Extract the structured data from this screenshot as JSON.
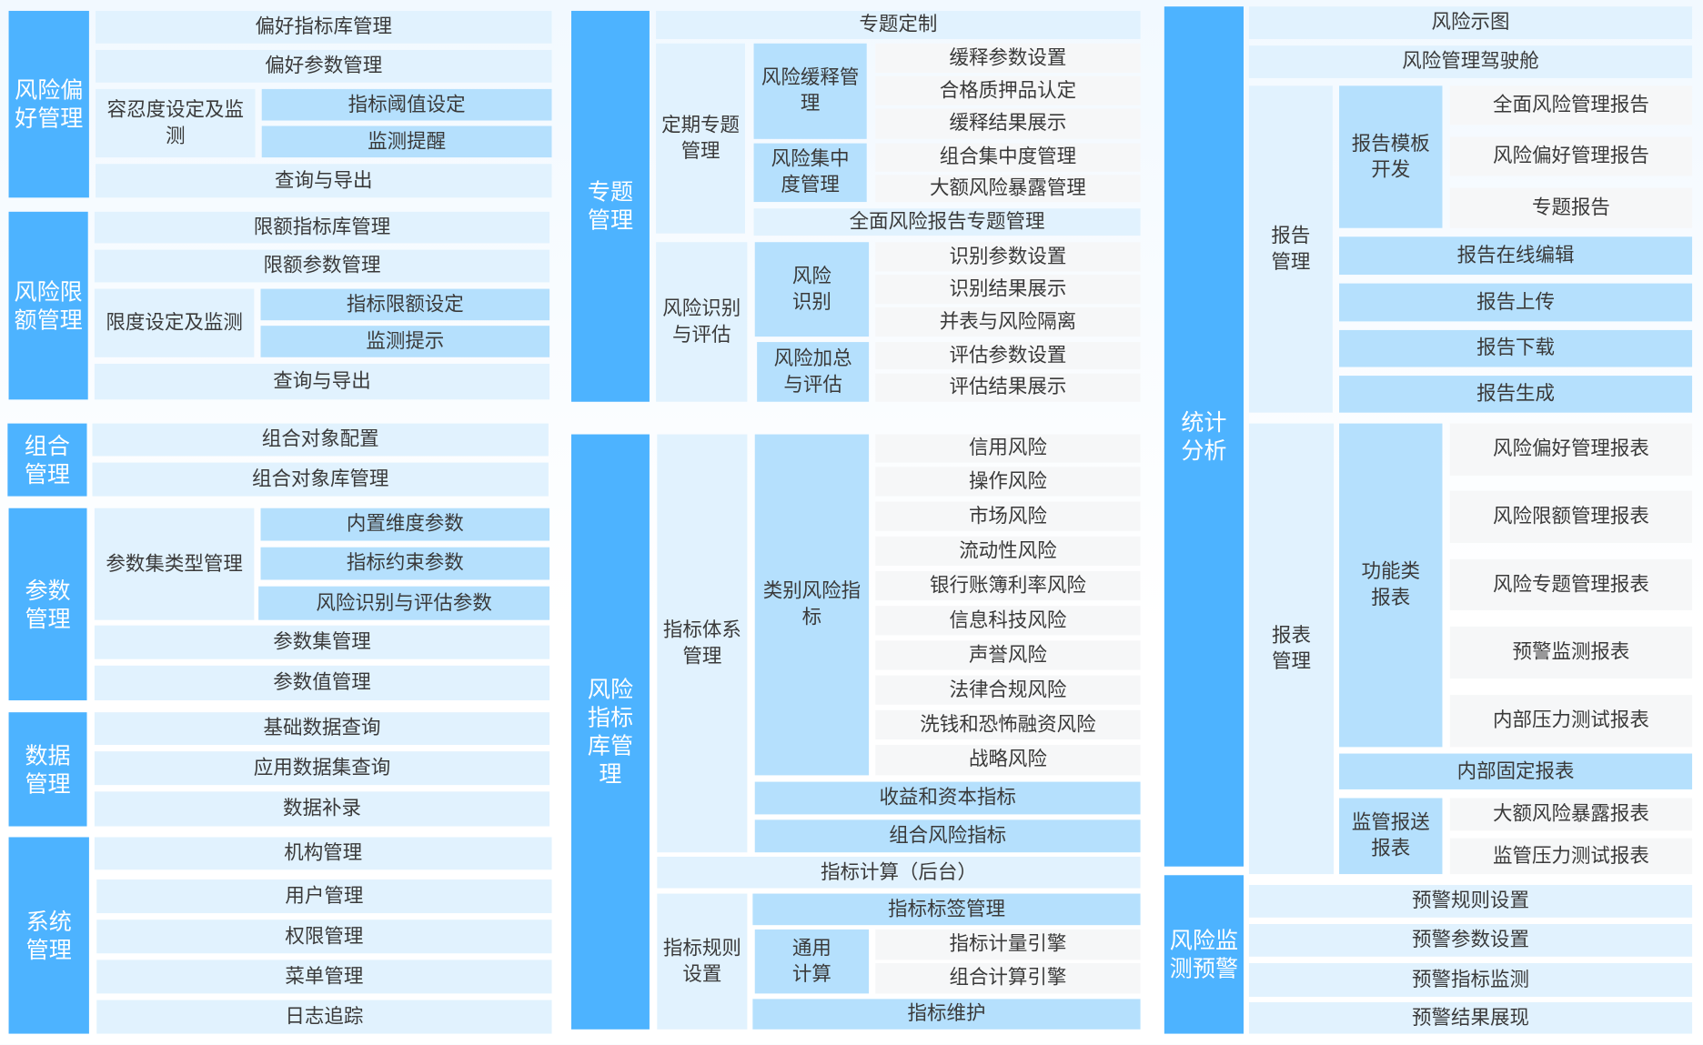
{
  "colors": {
    "header": "#4db3ff",
    "level2": "#e1f2fe",
    "level3": "#b5e0fd",
    "leaf": "#f6f7f8",
    "text": "#3a3a3a"
  },
  "risk_appetite": {
    "title": "风险偏\n好管理",
    "indicator_lib": "偏好指标库管理",
    "params": "偏好参数管理",
    "tolerance": "容忍度设定及监\n测",
    "threshold": "指标阈值设定",
    "reminder": "监测提醒",
    "query": "查询与导出"
  },
  "risk_limit": {
    "title": "风险限\n额管理",
    "indicator_lib": "限额指标库管理",
    "params": "限额参数管理",
    "limit_setting": "限度设定及监测",
    "indicator_limit": "指标限额设定",
    "prompt": "监测提示",
    "query": "查询与导出"
  },
  "portfolio": {
    "title": "组合\n管理",
    "config": "组合对象配置",
    "lib": "组合对象库管理"
  },
  "parameters": {
    "title": "参数\n管理",
    "set_type": "参数集类型管理",
    "builtin": "内置维度参数",
    "constraint": "指标约束参数",
    "risk_eval": "风险识别与评估参数",
    "set_mgmt": "参数集管理",
    "value_mgmt": "参数值管理"
  },
  "data_mgmt": {
    "title": "数据\n管理",
    "basic": "基础数据查询",
    "app": "应用数据集查询",
    "supplement": "数据补录"
  },
  "system": {
    "title": "系统\n管理",
    "org": "机构管理",
    "user": "用户管理",
    "perm": "权限管理",
    "menu": "菜单管理",
    "log": "日志追踪"
  },
  "topic": {
    "title": "专题\n管理",
    "custom": "专题定制",
    "periodic": "定期专题\n管理",
    "mitigation": "风险缓释管\n理",
    "mitigation_items": [
      "缓释参数设置",
      "合格质押品认定",
      "缓释结果展示"
    ],
    "concentration": "风险集中\n度管理",
    "concentration_items": [
      "组合集中度管理",
      "大额风险暴露管理"
    ],
    "comprehensive": "全面风险报告专题管理",
    "identify_eval": "风险识别\n与评估",
    "identify": "风险\n识别",
    "identify_items": [
      "识别参数设置",
      "识别结果展示",
      "并表与风险隔离"
    ],
    "aggregate": "风险加总\n与评估",
    "aggregate_items": [
      "评估参数设置",
      "评估结果展示"
    ]
  },
  "indicator_lib": {
    "title": "风险\n指标\n库管\n理",
    "system": "指标体系\n管理",
    "category": "类别风险指\n标",
    "category_items": [
      "信用风险",
      "操作风险",
      "市场风险",
      "流动性风险",
      "银行账簿利率风险",
      "信息科技风险",
      "声誉风险",
      "法律合规风险",
      "洗钱和恐怖融资风险",
      "战略风险"
    ],
    "income_capital": "收益和资本指标",
    "portfolio_ind": "组合风险指标",
    "calc": "指标计算（后台）",
    "rules": "指标规则\n设置",
    "tag": "指标标签管理",
    "general": "通用\n计算",
    "general_items": [
      "指标计量引擎",
      "组合计算引擎"
    ],
    "maintain": "指标维护"
  },
  "statistics": {
    "title": "统计\n分析",
    "risk_map": "风险示图",
    "cockpit": "风险管理驾驶舱",
    "report_mgmt": "报告\n管理",
    "template": "报告模板\n开发",
    "template_items": [
      "全面风险管理报告",
      "风险偏好管理报告",
      "专题报告"
    ],
    "report_ops": [
      "报告在线编辑",
      "报告上传",
      "报告下载",
      "报告生成"
    ],
    "statement_mgmt": "报表\n管理",
    "functional": "功能类\n报表",
    "functional_items": [
      "风险偏好管理报表",
      "风险限额管理报表",
      "风险专题管理报表",
      "预警监测报表",
      "内部压力测试报表"
    ],
    "internal_fixed": "内部固定报表",
    "regulatory": "监管报送\n报表",
    "regulatory_items": [
      "大额风险暴露报表",
      "监管压力测试报表"
    ]
  },
  "warning": {
    "title": "风险监\n测预警",
    "items": [
      "预警规则设置",
      "预警参数设置",
      "预警指标监测",
      "预警结果展现"
    ]
  }
}
